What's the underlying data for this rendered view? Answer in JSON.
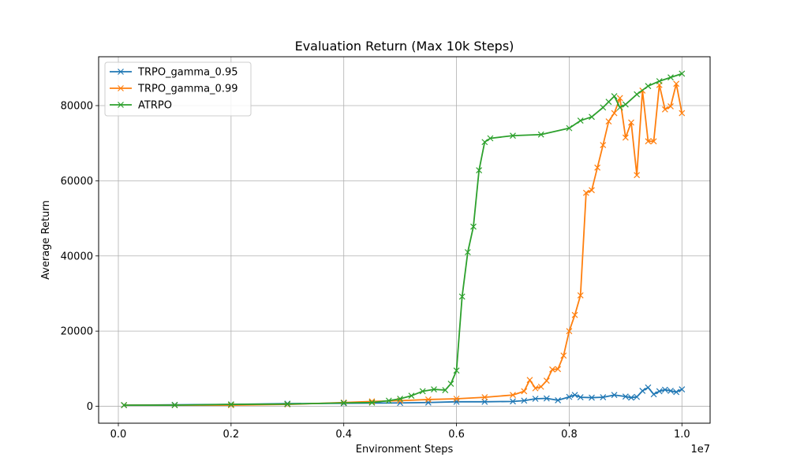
{
  "chart_data": {
    "type": "line",
    "title": "Evaluation Return (Max 10k Steps)",
    "xlabel": "Environment Steps",
    "ylabel": "Average Return",
    "x_offset_label": "1e7",
    "xlim": [
      -0.035,
      1.05
    ],
    "ylim": [
      -4500,
      93000
    ],
    "xticks": [
      0.0,
      0.2,
      0.4,
      0.6,
      0.8,
      1.0
    ],
    "xtick_labels": [
      "0.0",
      "0.2",
      "0.4",
      "0.6",
      "0.8",
      "1.0"
    ],
    "yticks": [
      0,
      20000,
      40000,
      60000,
      80000
    ],
    "ytick_labels": [
      "0",
      "20000",
      "40000",
      "60000",
      "80000"
    ],
    "grid": true,
    "legend_position": "top-left",
    "marker": "x",
    "series": [
      {
        "name": "TRPO_gamma_0.95",
        "color": "#1f77b4",
        "points": [
          [
            0.01,
            300
          ],
          [
            0.1,
            400
          ],
          [
            0.2,
            500
          ],
          [
            0.3,
            700
          ],
          [
            0.4,
            800
          ],
          [
            0.5,
            900
          ],
          [
            0.55,
            1000
          ],
          [
            0.6,
            1200
          ],
          [
            0.65,
            1200
          ],
          [
            0.7,
            1300
          ],
          [
            0.72,
            1500
          ],
          [
            0.74,
            2000
          ],
          [
            0.76,
            2100
          ],
          [
            0.78,
            1600
          ],
          [
            0.8,
            2500
          ],
          [
            0.81,
            3000
          ],
          [
            0.82,
            2400
          ],
          [
            0.84,
            2300
          ],
          [
            0.86,
            2400
          ],
          [
            0.88,
            3000
          ],
          [
            0.9,
            2600
          ],
          [
            0.91,
            2300
          ],
          [
            0.92,
            2500
          ],
          [
            0.93,
            4100
          ],
          [
            0.94,
            5000
          ],
          [
            0.95,
            3200
          ],
          [
            0.96,
            4000
          ],
          [
            0.97,
            4400
          ],
          [
            0.98,
            4100
          ],
          [
            0.99,
            3800
          ],
          [
            1.0,
            4500
          ]
        ]
      },
      {
        "name": "TRPO_gamma_0.99",
        "color": "#ff7f0e",
        "points": [
          [
            0.01,
            300
          ],
          [
            0.1,
            300
          ],
          [
            0.2,
            300
          ],
          [
            0.3,
            500
          ],
          [
            0.4,
            1000
          ],
          [
            0.45,
            1300
          ],
          [
            0.5,
            1500
          ],
          [
            0.55,
            1800
          ],
          [
            0.6,
            2000
          ],
          [
            0.65,
            2400
          ],
          [
            0.7,
            3000
          ],
          [
            0.72,
            4000
          ],
          [
            0.73,
            7000
          ],
          [
            0.74,
            4800
          ],
          [
            0.75,
            5200
          ],
          [
            0.76,
            6800
          ],
          [
            0.77,
            9800
          ],
          [
            0.78,
            9900
          ],
          [
            0.79,
            13500
          ],
          [
            0.8,
            20000
          ],
          [
            0.81,
            24300
          ],
          [
            0.82,
            29500
          ],
          [
            0.83,
            56800
          ],
          [
            0.84,
            57500
          ],
          [
            0.85,
            63500
          ],
          [
            0.86,
            69500
          ],
          [
            0.87,
            75800
          ],
          [
            0.88,
            78000
          ],
          [
            0.89,
            82000
          ],
          [
            0.9,
            71500
          ],
          [
            0.91,
            75500
          ],
          [
            0.92,
            61500
          ],
          [
            0.93,
            84000
          ],
          [
            0.94,
            70500
          ],
          [
            0.95,
            70500
          ],
          [
            0.96,
            85500
          ],
          [
            0.97,
            79000
          ],
          [
            0.98,
            79800
          ],
          [
            0.99,
            85800
          ],
          [
            1.0,
            78000
          ]
        ]
      },
      {
        "name": "ATRPO",
        "color": "#2ca02c",
        "points": [
          [
            0.01,
            300
          ],
          [
            0.1,
            300
          ],
          [
            0.2,
            500
          ],
          [
            0.3,
            600
          ],
          [
            0.4,
            900
          ],
          [
            0.45,
            1000
          ],
          [
            0.48,
            1500
          ],
          [
            0.5,
            2000
          ],
          [
            0.52,
            2800
          ],
          [
            0.54,
            4000
          ],
          [
            0.56,
            4500
          ],
          [
            0.58,
            4300
          ],
          [
            0.59,
            6000
          ],
          [
            0.6,
            9500
          ],
          [
            0.61,
            29200
          ],
          [
            0.62,
            41000
          ],
          [
            0.63,
            47800
          ],
          [
            0.64,
            62800
          ],
          [
            0.65,
            70300
          ],
          [
            0.66,
            71300
          ],
          [
            0.7,
            72000
          ],
          [
            0.75,
            72300
          ],
          [
            0.8,
            74000
          ],
          [
            0.82,
            76000
          ],
          [
            0.84,
            77000
          ],
          [
            0.86,
            79500
          ],
          [
            0.87,
            81000
          ],
          [
            0.88,
            82500
          ],
          [
            0.89,
            79500
          ],
          [
            0.9,
            80300
          ],
          [
            0.92,
            83000
          ],
          [
            0.94,
            85200
          ],
          [
            0.96,
            86500
          ],
          [
            0.98,
            87500
          ],
          [
            1.0,
            88500
          ]
        ]
      }
    ]
  }
}
